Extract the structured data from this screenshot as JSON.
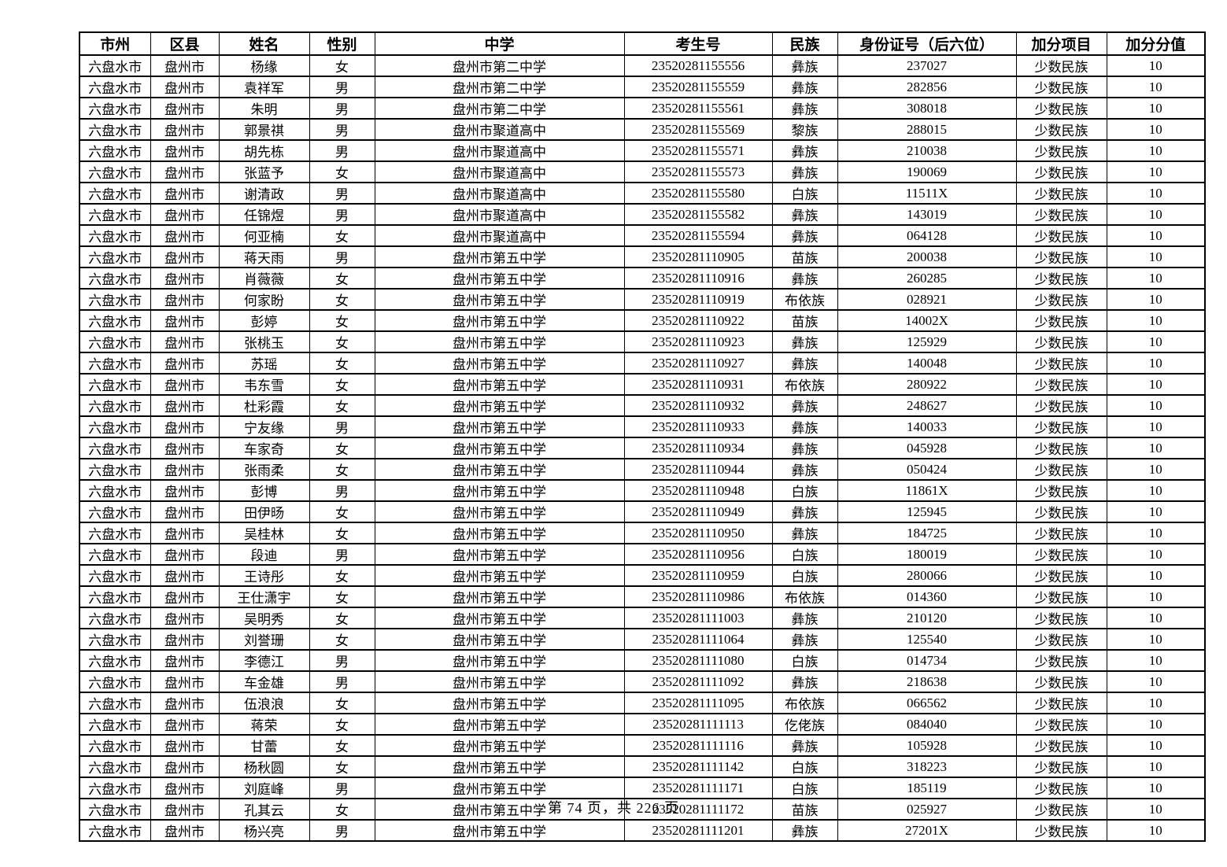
{
  "table": {
    "headers": [
      "市州",
      "区县",
      "姓名",
      "性别",
      "中学",
      "考生号",
      "民族",
      "身份证号（后六位）",
      "加分项目",
      "加分分值"
    ],
    "rows": [
      [
        "六盘水市",
        "盘州市",
        "杨缘",
        "女",
        "盘州市第二中学",
        "23520281155556",
        "彝族",
        "237027",
        "少数民族",
        "10"
      ],
      [
        "六盘水市",
        "盘州市",
        "袁祥军",
        "男",
        "盘州市第二中学",
        "23520281155559",
        "彝族",
        "282856",
        "少数民族",
        "10"
      ],
      [
        "六盘水市",
        "盘州市",
        "朱明",
        "男",
        "盘州市第二中学",
        "23520281155561",
        "彝族",
        "308018",
        "少数民族",
        "10"
      ],
      [
        "六盘水市",
        "盘州市",
        "郭景祺",
        "男",
        "盘州市聚道高中",
        "23520281155569",
        "黎族",
        "288015",
        "少数民族",
        "10"
      ],
      [
        "六盘水市",
        "盘州市",
        "胡先栋",
        "男",
        "盘州市聚道高中",
        "23520281155571",
        "彝族",
        "210038",
        "少数民族",
        "10"
      ],
      [
        "六盘水市",
        "盘州市",
        "张蓝予",
        "女",
        "盘州市聚道高中",
        "23520281155573",
        "彝族",
        "190069",
        "少数民族",
        "10"
      ],
      [
        "六盘水市",
        "盘州市",
        "谢清政",
        "男",
        "盘州市聚道高中",
        "23520281155580",
        "白族",
        "11511X",
        "少数民族",
        "10"
      ],
      [
        "六盘水市",
        "盘州市",
        "任锦煜",
        "男",
        "盘州市聚道高中",
        "23520281155582",
        "彝族",
        "143019",
        "少数民族",
        "10"
      ],
      [
        "六盘水市",
        "盘州市",
        "何亚楠",
        "女",
        "盘州市聚道高中",
        "23520281155594",
        "彝族",
        "064128",
        "少数民族",
        "10"
      ],
      [
        "六盘水市",
        "盘州市",
        "蒋天雨",
        "男",
        "盘州市第五中学",
        "23520281110905",
        "苗族",
        "200038",
        "少数民族",
        "10"
      ],
      [
        "六盘水市",
        "盘州市",
        "肖薇薇",
        "女",
        "盘州市第五中学",
        "23520281110916",
        "彝族",
        "260285",
        "少数民族",
        "10"
      ],
      [
        "六盘水市",
        "盘州市",
        "何家盼",
        "女",
        "盘州市第五中学",
        "23520281110919",
        "布依族",
        "028921",
        "少数民族",
        "10"
      ],
      [
        "六盘水市",
        "盘州市",
        "彭婷",
        "女",
        "盘州市第五中学",
        "23520281110922",
        "苗族",
        "14002X",
        "少数民族",
        "10"
      ],
      [
        "六盘水市",
        "盘州市",
        "张桃玉",
        "女",
        "盘州市第五中学",
        "23520281110923",
        "彝族",
        "125929",
        "少数民族",
        "10"
      ],
      [
        "六盘水市",
        "盘州市",
        "苏瑶",
        "女",
        "盘州市第五中学",
        "23520281110927",
        "彝族",
        "140048",
        "少数民族",
        "10"
      ],
      [
        "六盘水市",
        "盘州市",
        "韦东雪",
        "女",
        "盘州市第五中学",
        "23520281110931",
        "布依族",
        "280922",
        "少数民族",
        "10"
      ],
      [
        "六盘水市",
        "盘州市",
        "杜彩霞",
        "女",
        "盘州市第五中学",
        "23520281110932",
        "彝族",
        "248627",
        "少数民族",
        "10"
      ],
      [
        "六盘水市",
        "盘州市",
        "宁友缘",
        "男",
        "盘州市第五中学",
        "23520281110933",
        "彝族",
        "140033",
        "少数民族",
        "10"
      ],
      [
        "六盘水市",
        "盘州市",
        "车家奇",
        "女",
        "盘州市第五中学",
        "23520281110934",
        "彝族",
        "045928",
        "少数民族",
        "10"
      ],
      [
        "六盘水市",
        "盘州市",
        "张雨柔",
        "女",
        "盘州市第五中学",
        "23520281110944",
        "彝族",
        "050424",
        "少数民族",
        "10"
      ],
      [
        "六盘水市",
        "盘州市",
        "彭博",
        "男",
        "盘州市第五中学",
        "23520281110948",
        "白族",
        "11861X",
        "少数民族",
        "10"
      ],
      [
        "六盘水市",
        "盘州市",
        "田伊旸",
        "女",
        "盘州市第五中学",
        "23520281110949",
        "彝族",
        "125945",
        "少数民族",
        "10"
      ],
      [
        "六盘水市",
        "盘州市",
        "吴桂林",
        "女",
        "盘州市第五中学",
        "23520281110950",
        "彝族",
        "184725",
        "少数民族",
        "10"
      ],
      [
        "六盘水市",
        "盘州市",
        "段迪",
        "男",
        "盘州市第五中学",
        "23520281110956",
        "白族",
        "180019",
        "少数民族",
        "10"
      ],
      [
        "六盘水市",
        "盘州市",
        "王诗彤",
        "女",
        "盘州市第五中学",
        "23520281110959",
        "白族",
        "280066",
        "少数民族",
        "10"
      ],
      [
        "六盘水市",
        "盘州市",
        "王仕潇宇",
        "女",
        "盘州市第五中学",
        "23520281110986",
        "布依族",
        "014360",
        "少数民族",
        "10"
      ],
      [
        "六盘水市",
        "盘州市",
        "吴明秀",
        "女",
        "盘州市第五中学",
        "23520281111003",
        "彝族",
        "210120",
        "少数民族",
        "10"
      ],
      [
        "六盘水市",
        "盘州市",
        "刘誉珊",
        "女",
        "盘州市第五中学",
        "23520281111064",
        "彝族",
        "125540",
        "少数民族",
        "10"
      ],
      [
        "六盘水市",
        "盘州市",
        "李德江",
        "男",
        "盘州市第五中学",
        "23520281111080",
        "白族",
        "014734",
        "少数民族",
        "10"
      ],
      [
        "六盘水市",
        "盘州市",
        "车金雄",
        "男",
        "盘州市第五中学",
        "23520281111092",
        "彝族",
        "218638",
        "少数民族",
        "10"
      ],
      [
        "六盘水市",
        "盘州市",
        "伍浪浪",
        "女",
        "盘州市第五中学",
        "23520281111095",
        "布依族",
        "066562",
        "少数民族",
        "10"
      ],
      [
        "六盘水市",
        "盘州市",
        "蒋荣",
        "女",
        "盘州市第五中学",
        "23520281111113",
        "仡佬族",
        "084040",
        "少数民族",
        "10"
      ],
      [
        "六盘水市",
        "盘州市",
        "甘蕾",
        "女",
        "盘州市第五中学",
        "23520281111116",
        "彝族",
        "105928",
        "少数民族",
        "10"
      ],
      [
        "六盘水市",
        "盘州市",
        "杨秋圆",
        "女",
        "盘州市第五中学",
        "23520281111142",
        "白族",
        "318223",
        "少数民族",
        "10"
      ],
      [
        "六盘水市",
        "盘州市",
        "刘庭峰",
        "男",
        "盘州市第五中学",
        "23520281111171",
        "白族",
        "185119",
        "少数民族",
        "10"
      ],
      [
        "六盘水市",
        "盘州市",
        "孔其云",
        "女",
        "盘州市第五中学",
        "23520281111172",
        "苗族",
        "025927",
        "少数民族",
        "10"
      ],
      [
        "六盘水市",
        "盘州市",
        "杨兴亮",
        "男",
        "盘州市第五中学",
        "23520281111201",
        "彝族",
        "27201X",
        "少数民族",
        "10"
      ]
    ]
  },
  "footer": {
    "page_text": "第 74 页，共 226 页"
  }
}
